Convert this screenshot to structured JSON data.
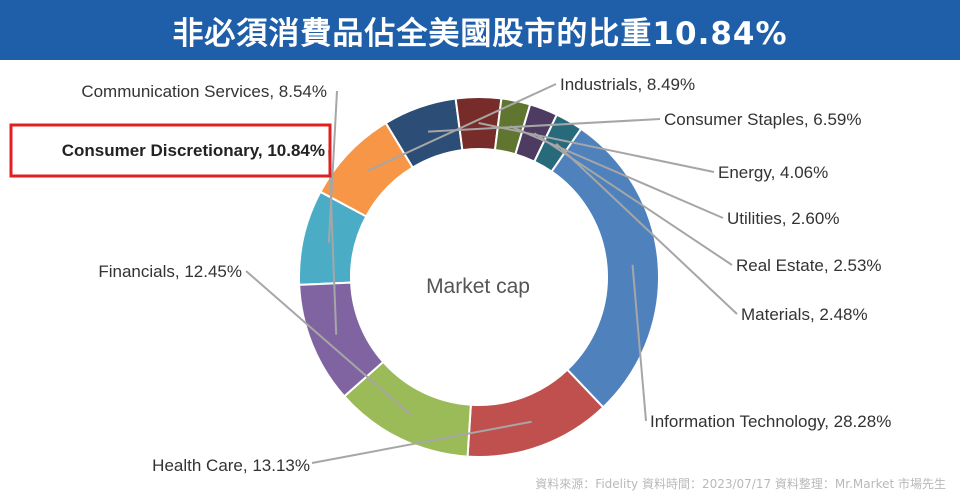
{
  "header": {
    "title": "非必須消費品佔全美國股市的比重10.84%"
  },
  "chart_data": {
    "type": "pie",
    "style": "donut",
    "center_label": "Market cap",
    "highlighted": "Consumer Discretionary",
    "highlight_color": "#e02020",
    "series": [
      {
        "name": "Communication Services",
        "value": 8.54,
        "label": "Communication Services, 8.54%",
        "color": "#4bacc6"
      },
      {
        "name": "Industrials",
        "value": 8.49,
        "label": "Industrials, 8.49%",
        "color": "#f79646"
      },
      {
        "name": "Consumer Staples",
        "value": 6.59,
        "label": "Consumer Staples, 6.59%",
        "color": "#2c4d75"
      },
      {
        "name": "Energy",
        "value": 4.06,
        "label": "Energy, 4.06%",
        "color": "#772c2a"
      },
      {
        "name": "Utilities",
        "value": 2.6,
        "label": "Utilities, 2.60%",
        "color": "#5f7530"
      },
      {
        "name": "Real Estate",
        "value": 2.53,
        "label": "Real Estate, 2.53%",
        "color": "#4d3b62"
      },
      {
        "name": "Materials",
        "value": 2.48,
        "label": "Materials, 2.48%",
        "color": "#276a7c"
      },
      {
        "name": "Information Technology",
        "value": 28.28,
        "label": "Information Technology, 28.28%",
        "color": "#4f81bd"
      },
      {
        "name": "Health Care",
        "value": 13.13,
        "label": "Health Care, 13.13%",
        "color": "#c0504d"
      },
      {
        "name": "Financials",
        "value": 12.45,
        "label": "Financials, 12.45%",
        "color": "#9bbb59"
      },
      {
        "name": "Consumer Discretionary",
        "value": 10.84,
        "label": "Consumer Discretionary, 10.84%",
        "color": "#8064a2"
      }
    ]
  },
  "footer": {
    "source": "資料來源：Fidelity   資料時間：2023/07/17   資料整理：Mr.Market 市場先生"
  }
}
